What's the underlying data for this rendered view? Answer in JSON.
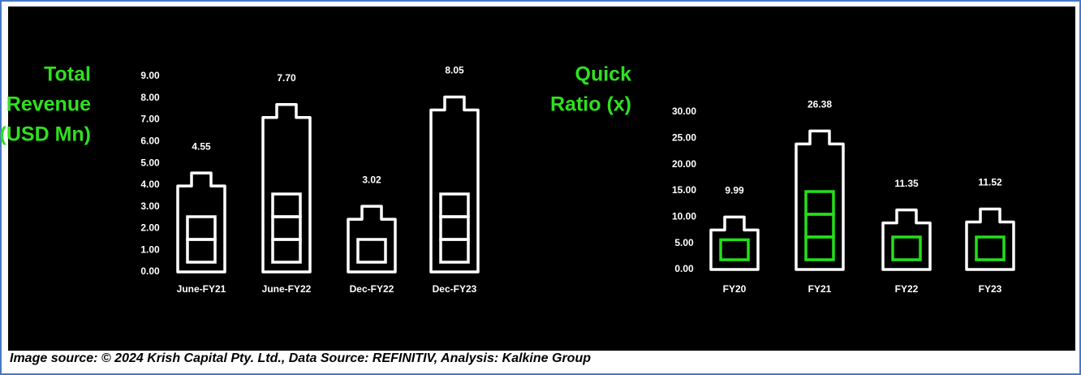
{
  "chart_data": [
    {
      "type": "battery-bar",
      "title_lines": [
        "Total",
        "Revenue",
        "(USD Mn)"
      ],
      "categories": [
        "June-FY21",
        "June-FY22",
        "Dec-FY22",
        "Dec-FY23"
      ],
      "values": [
        4.55,
        7.7,
        3.02,
        8.05
      ],
      "value_labels": [
        "4.55",
        "7.70",
        "3.02",
        "8.05"
      ],
      "color": "#ffffff",
      "ylim": [
        0,
        9
      ],
      "yticks": [
        {
          "value": 0,
          "label": "0.00"
        },
        {
          "value": 1,
          "label": "1.00"
        },
        {
          "value": 2,
          "label": "2.00"
        },
        {
          "value": 3,
          "label": "3.00"
        },
        {
          "value": 4,
          "label": "4.00"
        },
        {
          "value": 5,
          "label": "5.00"
        },
        {
          "value": 6,
          "label": "6.00"
        },
        {
          "value": 7,
          "label": "7.00"
        },
        {
          "value": 8,
          "label": "8.00"
        },
        {
          "value": 9,
          "label": "9.00"
        }
      ]
    },
    {
      "type": "battery-bar",
      "title_lines": [
        "Quick",
        "Ratio (x)"
      ],
      "categories": [
        "FY20",
        "FY21",
        "FY22",
        "FY23"
      ],
      "values": [
        9.99,
        26.38,
        11.35,
        11.52
      ],
      "value_labels": [
        "9.99",
        "26.38",
        "11.35",
        "11.52"
      ],
      "color": "#22e01a",
      "ylim": [
        0,
        30
      ],
      "yticks": [
        {
          "value": 0,
          "label": "0.00"
        },
        {
          "value": 5,
          "label": "5.00"
        },
        {
          "value": 10,
          "label": "10.00"
        },
        {
          "value": 15,
          "label": "15.00"
        },
        {
          "value": 20,
          "label": "20.00"
        },
        {
          "value": 25,
          "label": "25.00"
        },
        {
          "value": 30,
          "label": "30.00"
        }
      ]
    }
  ],
  "source": "Image source: © 2024 Krish Capital Pty. Ltd., Data Source: REFINITIV, Analysis: Kalkine Group"
}
